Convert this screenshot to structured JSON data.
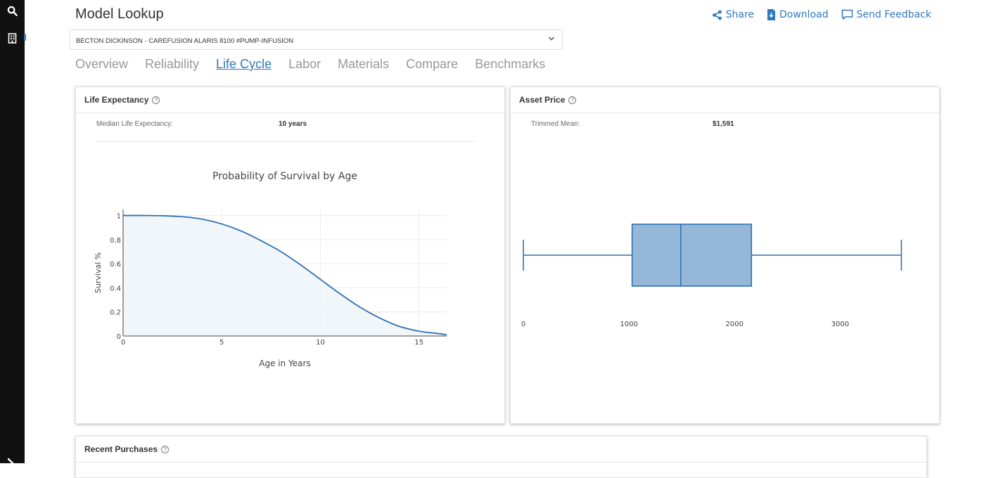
{
  "sidebar": {
    "icons": [
      "search-icon",
      "building-icon",
      "wrench-icon"
    ]
  },
  "header": {
    "title": "Model Lookup",
    "actions": [
      {
        "label": "Share",
        "icon": "share-icon"
      },
      {
        "label": "Download",
        "icon": "download-icon"
      },
      {
        "label": "Send Feedback",
        "icon": "feedback-icon"
      }
    ]
  },
  "model_select": {
    "value": "BECTON DICKINSON - CAREFUSION ALARIS 8100 #PUMP-INFUSION"
  },
  "tabs": [
    {
      "label": "Overview",
      "active": false
    },
    {
      "label": "Reliability",
      "active": false
    },
    {
      "label": "Life Cycle",
      "active": true
    },
    {
      "label": "Labor",
      "active": false
    },
    {
      "label": "Materials",
      "active": false
    },
    {
      "label": "Compare",
      "active": false
    },
    {
      "label": "Benchmarks",
      "active": false
    }
  ],
  "life_expectancy": {
    "title": "Life Expectancy",
    "metric_label": "Median Life Expectancy:",
    "metric_value": "10 years"
  },
  "asset_price": {
    "title": "Asset Price",
    "metric_label": "Trimmed Mean:",
    "metric_value": "$1,591"
  },
  "recent_purchases": {
    "title": "Recent Purchases"
  },
  "colors": {
    "accent": "#2f79bf",
    "line": "#2f6fb0",
    "box_fill": "#95b8d9",
    "sidebar": "#111111"
  },
  "chart_data": [
    {
      "type": "area",
      "title": "Probability of Survival by Age",
      "xlabel": "Age in Years",
      "ylabel": "Survival %",
      "xlim": [
        0,
        16.4
      ],
      "ylim": [
        0,
        1.05
      ],
      "xticks": [
        0,
        5,
        10,
        15
      ],
      "yticks": [
        0,
        0.2,
        0.4,
        0.6,
        0.8,
        1
      ],
      "ytick_labels": [
        "0",
        "0.2",
        "0.4",
        "0.6",
        "0.8",
        "1"
      ],
      "grid": true,
      "series": [
        {
          "x": [
            0,
            1,
            2,
            3,
            4,
            5,
            6,
            7,
            8,
            9,
            10,
            11,
            12,
            13,
            14,
            15,
            16,
            16.4
          ],
          "y": [
            1.0,
            1.0,
            0.998,
            0.99,
            0.97,
            0.93,
            0.87,
            0.79,
            0.7,
            0.59,
            0.47,
            0.35,
            0.24,
            0.15,
            0.08,
            0.04,
            0.02,
            0.01
          ]
        }
      ]
    },
    {
      "type": "box",
      "xlim": [
        -120,
        3950
      ],
      "xticks": [
        0,
        1000,
        2000,
        3000
      ],
      "box": {
        "min": 0,
        "q1": 1030,
        "median": 1490,
        "q3": 2160,
        "max": 3580
      },
      "grid": false
    }
  ]
}
